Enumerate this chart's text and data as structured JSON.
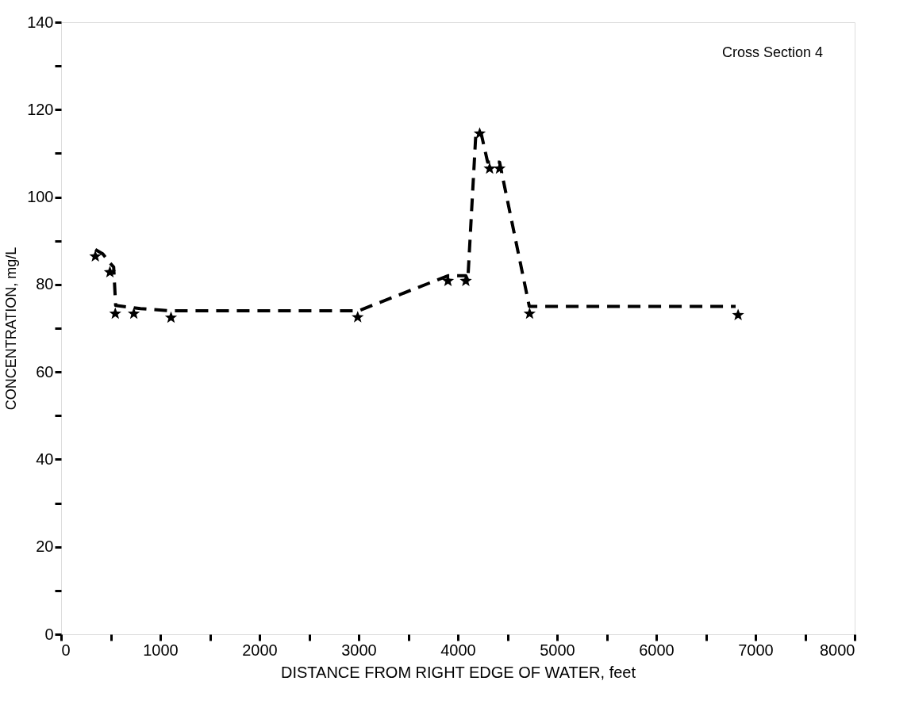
{
  "chart_data": {
    "type": "scatter",
    "xlabel": "DISTANCE FROM RIGHT EDGE OF WATER, feet",
    "ylabel": "CONCENTRATION, mg/L",
    "annotations": [
      "Cross Section 4"
    ],
    "x": [
      345,
      492,
      546,
      733,
      1108,
      2990,
      3900,
      4080,
      4220,
      4320,
      4420,
      4723,
      6825
    ],
    "series": [
      {
        "color": "#000000",
        "marker": "star",
        "values": [
          86.4,
          82.8,
          73.3,
          73.3,
          72.4,
          72.5,
          80.8,
          80.8,
          114.5,
          106.5,
          106.5,
          73.3,
          73
        ]
      },
      {
        "type": "line",
        "color": "#000000",
        "line_style": "dashed",
        "marker": "none",
        "x": [
          345,
          420,
          490,
          530,
          550,
          800,
          1100,
          3000,
          3900,
          4080,
          4100,
          4180,
          4230,
          4300,
          4420,
          4720,
          6800
        ],
        "values": [
          88,
          87,
          85,
          84,
          75.2,
          74.5,
          74,
          74,
          82,
          82,
          81,
          114,
          115,
          108,
          108,
          75,
          75
        ]
      }
    ],
    "xlim": [
      0,
      8000
    ],
    "ylim": [
      0,
      140
    ],
    "xticks": [
      0,
      {
        "value": 500,
        "label": null
      },
      1000,
      {
        "value": 1500,
        "label": null
      },
      2000,
      {
        "value": 2500,
        "label": null
      },
      3000,
      {
        "value": 3500,
        "label": null
      },
      4000,
      {
        "value": 4500,
        "label": null
      },
      5000,
      {
        "value": 5500,
        "label": null
      },
      6000,
      {
        "value": 6500,
        "label": null
      },
      7000,
      {
        "value": 7500,
        "label": null
      },
      8000
    ],
    "yticks": [
      0,
      {
        "value": 10,
        "label": null
      },
      20,
      {
        "value": 30,
        "label": null
      },
      40,
      {
        "value": 50,
        "label": null
      },
      60,
      {
        "value": 70,
        "label": null
      },
      80,
      {
        "value": 90,
        "label": null
      },
      100,
      {
        "value": 110,
        "label": null
      },
      120,
      {
        "value": 130,
        "label": null
      },
      140
    ],
    "grid": false
  }
}
